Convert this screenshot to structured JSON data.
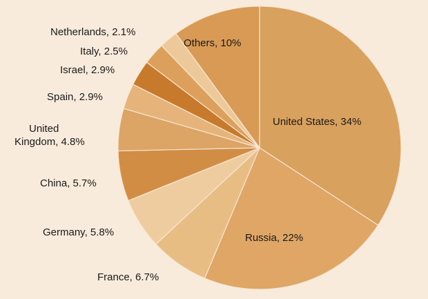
{
  "chart_data": {
    "type": "pie",
    "title": "",
    "slices": [
      {
        "label": "United States, 34%",
        "value": 34,
        "color": "#d9a15e"
      },
      {
        "label": "Russia, 22%",
        "value": 22,
        "color": "#dfa666"
      },
      {
        "label": "France, 6.7%",
        "value": 6.7,
        "color": "#e8bd84"
      },
      {
        "label": "Germany, 5.8%",
        "value": 5.8,
        "color": "#efcc9f"
      },
      {
        "label": "China, 5.7%",
        "value": 5.7,
        "color": "#d28d45"
      },
      {
        "label": "United Kingdom, 4.8%",
        "value": 4.8,
        "color": "#dca465"
      },
      {
        "label": "Spain, 2.9%",
        "value": 2.9,
        "color": "#e6b47a"
      },
      {
        "label": "Israel, 2.9%",
        "value": 2.9,
        "color": "#c77a2b"
      },
      {
        "label": "Italy, 2.5%",
        "value": 2.5,
        "color": "#dda05c"
      },
      {
        "label": "Netherlands, 2.1%",
        "value": 2.1,
        "color": "#edc99a"
      },
      {
        "label": "Others, 10%",
        "value": 10,
        "color": "#d89a55"
      }
    ]
  }
}
